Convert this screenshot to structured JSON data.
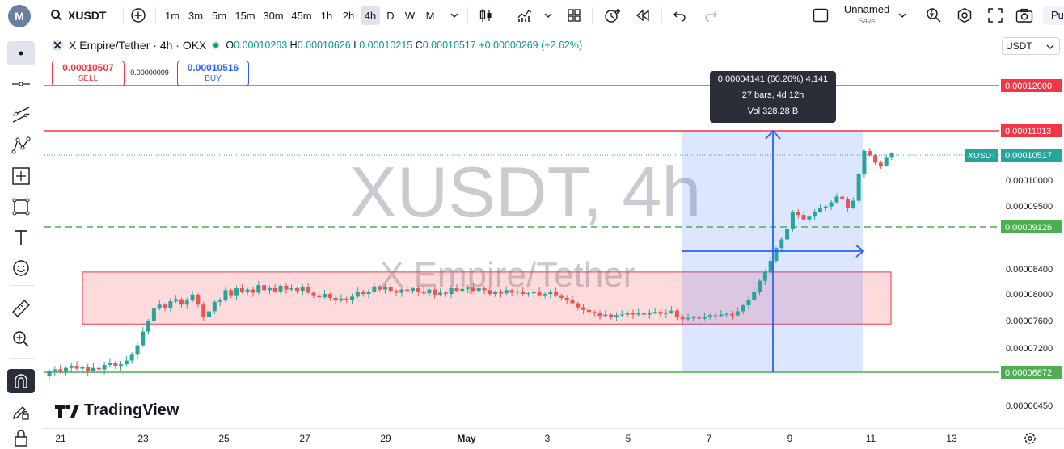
{
  "toolbar": {
    "logo_letter": "M",
    "symbol": "XUSDT",
    "intervals": [
      "1m",
      "3m",
      "5m",
      "15m",
      "30m",
      "45m",
      "1h",
      "2h",
      "4h",
      "D",
      "W",
      "M"
    ],
    "active_interval": "4h",
    "layout_name": "Unnamed",
    "layout_save": "Save",
    "publish": "Pu"
  },
  "legend": {
    "title": "X Empire/Tether · 4h · OKX",
    "o_label": "O",
    "o": "0.00010263",
    "h_label": "H",
    "h": "0.00010626",
    "l_label": "L",
    "l": "0.00010215",
    "c_label": "C",
    "c": "0.00010517",
    "change": "+0.00000269 (+2.62%)"
  },
  "trade": {
    "sell_price": "0.00010507",
    "sell_label": "SELL",
    "spread": "0.00000009",
    "buy_price": "0.00010516",
    "buy_label": "BUY"
  },
  "price_selector": "USDT",
  "watermark": {
    "line1": "XUSDT, 4h",
    "line2": "X Empire/Tether"
  },
  "measure_tooltip": {
    "line1": "0.00004141 (60.26%) 4,141",
    "line2": "27 bars, 4d 12h",
    "line3": "Vol 328.28 B"
  },
  "branding": "TradingView",
  "colors": {
    "up": "#26a69a",
    "down": "#ef5350",
    "red_line": "#f23645",
    "green_line": "#4caf50",
    "measure": "#2962ff"
  },
  "chart_data": {
    "type": "candlestick",
    "symbol_label": "XUSDT",
    "x_labels": [
      "21",
      "23",
      "25",
      "27",
      "29",
      "May",
      "3",
      "5",
      "7",
      "9",
      "11",
      "13"
    ],
    "y_ticks": [
      0.0001,
      9.5e-05,
      8.4e-05,
      8e-05,
      7.6e-05,
      7.2e-05,
      6.45e-05
    ],
    "y_tick_labels": [
      "0.00010000",
      "0.00009500",
      "0.00008400",
      "0.00008000",
      "0.00007600",
      "0.00007200",
      "0.00006450"
    ],
    "last_price": 0.00010517,
    "last_price_label": "0.00010517",
    "horizontal_lines": [
      {
        "price": 0.00012,
        "label": "0.00012000",
        "color": "#f23645",
        "style": "solid"
      },
      {
        "price": 0.00011013,
        "label": "0.00011013",
        "color": "#f23645",
        "style": "solid"
      },
      {
        "price": 9.126e-05,
        "label": "0.00009126",
        "color": "#4caf50",
        "style": "dashed"
      },
      {
        "price": 6.872e-05,
        "label": "0.00006872",
        "color": "#4caf50",
        "style": "solid"
      }
    ],
    "range_zone": {
      "top": 8.35e-05,
      "bottom": 7.55e-05
    },
    "candles_start": {
      "open": 6.83e-05,
      "label": "Apr 20"
    },
    "candle_moves": [
      0.6,
      0.2,
      -0.3,
      0.5,
      0.3,
      -0.4,
      0.2,
      -0.5,
      0.4,
      -0.2,
      0.6,
      0.3,
      -0.4,
      0.2,
      0.5,
      0.9,
      1.2,
      2.0,
      1.6,
      1.8,
      0.6,
      -0.5,
      1.0,
      0.3,
      -0.8,
      0.6,
      0.9,
      -1.5,
      -1.8,
      0.8,
      1.4,
      0.2,
      1.6,
      -0.8,
      1.1,
      -0.6,
      0.4,
      -0.5,
      1.2,
      -0.8,
      0.3,
      -0.5,
      0.9,
      -0.6,
      0.2,
      -0.4,
      0.6,
      -0.9,
      -0.4,
      -0.3,
      0.5,
      -0.6,
      -0.4,
      0.3,
      -0.2,
      0.5,
      0.8,
      -0.4,
      0.3,
      0.9,
      -0.5,
      0.4,
      -0.6,
      -0.3,
      0.5,
      -0.2,
      0.4,
      -0.5,
      -0.3,
      0.6,
      -0.8,
      0.3,
      -0.2,
      0.9,
      -0.4,
      0.3,
      0.2,
      -0.5,
      0.4,
      -0.3,
      -0.6,
      0.3,
      -0.2,
      0.5,
      -0.4,
      0.2,
      -0.4,
      0.1,
      0.3,
      -0.6,
      0.2,
      0.3,
      -0.5,
      -0.4,
      -0.3,
      -0.5,
      -0.6,
      -0.4,
      -0.3,
      -0.2,
      -0.4,
      0.2,
      -0.3,
      0.2,
      0.1,
      0.3,
      -0.3,
      0.2,
      -0.2,
      0.3,
      0.1,
      -0.3,
      0.2,
      0.3,
      -1.0,
      -0.3,
      0.2,
      0.1,
      -0.2,
      0.3,
      0.2,
      -0.1,
      0.2,
      0.1,
      -0.2,
      0.6,
      0.9,
      0.8,
      1.2,
      1.8,
      1.4,
      1.9,
      2.2,
      1.5,
      1.8,
      3.1,
      -0.6,
      -0.8,
      0.5,
      0.9,
      0.6,
      0.3,
      0.8,
      1.1,
      -0.5,
      -1.6,
      1.3,
      5.2,
      4.8,
      -0.9,
      -1.5,
      -0.6,
      1.6,
      0.9
    ],
    "measure": {
      "from_price": 6.872e-05,
      "to_price": 0.00011013,
      "change": "0.00004141",
      "percent": "60.26%",
      "ticks": "4,141",
      "bars": "27",
      "span": "4d 12h",
      "volume": "328.28 B",
      "start_date": "May 6",
      "end_date": "May 10"
    }
  }
}
